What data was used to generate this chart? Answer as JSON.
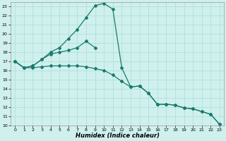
{
  "xlabel": "Humidex (Indice chaleur)",
  "background_color": "#cff0ec",
  "grid_color": "#aaddda",
  "line_color": "#1a7a6e",
  "xlim": [
    -0.5,
    23.5
  ],
  "ylim": [
    10,
    23.5
  ],
  "xticks": [
    0,
    1,
    2,
    3,
    4,
    5,
    6,
    7,
    8,
    9,
    10,
    11,
    12,
    13,
    14,
    15,
    16,
    17,
    18,
    19,
    20,
    21,
    22,
    23
  ],
  "yticks": [
    10,
    11,
    12,
    13,
    14,
    15,
    16,
    17,
    18,
    19,
    20,
    21,
    22,
    23
  ],
  "curve_peak_x": [
    0,
    1,
    2,
    3,
    4,
    5,
    6,
    7,
    8,
    9,
    10,
    11,
    12,
    13,
    14,
    15,
    16,
    17,
    18,
    19,
    20,
    21,
    22,
    23
  ],
  "curve_peak_y": [
    17.0,
    16.3,
    16.5,
    17.2,
    18.0,
    18.5,
    19.5,
    20.5,
    21.8,
    23.1,
    23.35,
    22.7,
    16.3,
    14.2,
    14.3,
    13.5,
    12.3,
    12.3,
    12.2,
    11.9,
    11.8,
    11.5,
    11.2,
    10.1
  ],
  "curve_mid_x": [
    0,
    1,
    2,
    3,
    4,
    5,
    6,
    7,
    8,
    9
  ],
  "curve_mid_y": [
    17.0,
    16.3,
    16.5,
    17.2,
    17.8,
    18.0,
    18.2,
    18.5,
    19.2,
    18.5
  ],
  "curve_low_x": [
    0,
    1,
    2,
    3,
    4,
    5,
    6,
    7,
    8,
    9,
    10,
    11,
    12,
    13,
    14,
    15,
    16,
    17,
    18,
    19,
    20,
    21,
    22,
    23
  ],
  "curve_low_y": [
    17.0,
    16.3,
    16.3,
    16.4,
    16.5,
    16.5,
    16.5,
    16.5,
    16.4,
    16.2,
    16.0,
    15.5,
    14.8,
    14.2,
    14.3,
    13.5,
    12.3,
    12.3,
    12.2,
    11.9,
    11.8,
    11.5,
    11.2,
    10.1
  ]
}
